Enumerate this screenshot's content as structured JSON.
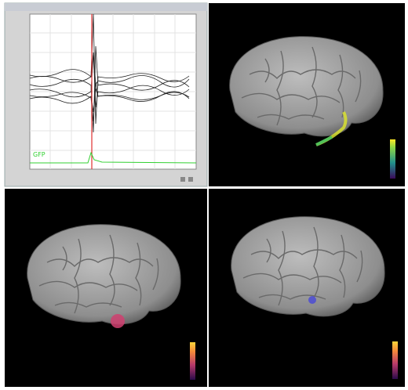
{
  "plot": {
    "gfp_label": "GFP"
  }
}
